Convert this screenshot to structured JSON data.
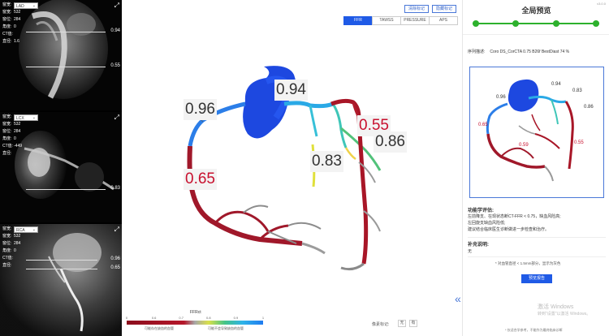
{
  "ct_panels": [
    {
      "vessel": "LAD",
      "fields": [
        {
          "k": "窗宽:",
          "v": "532"
        },
        {
          "k": "窗位:",
          "v": "284"
        },
        {
          "k": "角度:",
          "v": "0"
        },
        {
          "k": "CT值:",
          "v": ""
        },
        {
          "k": "直径:",
          "v": "1.6"
        }
      ],
      "marks": [
        "0.94",
        "0.55"
      ]
    },
    {
      "vessel": "LCX",
      "fields": [
        {
          "k": "窗宽:",
          "v": "532"
        },
        {
          "k": "窗位:",
          "v": "284"
        },
        {
          "k": "角度:",
          "v": "0"
        },
        {
          "k": "CT值:",
          "v": "-449"
        },
        {
          "k": "直径:",
          "v": ""
        }
      ],
      "marks": [
        "0.83"
      ]
    },
    {
      "vessel": "RCA",
      "fields": [
        {
          "k": "窗宽:",
          "v": "532"
        },
        {
          "k": "窗位:",
          "v": "284"
        },
        {
          "k": "角度:",
          "v": "0"
        },
        {
          "k": "CT值:",
          "v": ""
        },
        {
          "k": "直径:",
          "v": ""
        }
      ],
      "marks": [
        "0.96",
        "0.65"
      ]
    }
  ],
  "toolbar": {
    "clear_marks": "清除标记",
    "hide_marks": "隐藏标记"
  },
  "tabs": [
    "FFR",
    "TAWSS",
    "PRESSURE",
    "APS"
  ],
  "active_tab": "FFR",
  "ffr_labels": {
    "l096": "0.96",
    "l094": "0.94",
    "l055": "0.55",
    "l086": "0.86",
    "l083": "0.83",
    "l065": "0.65"
  },
  "legend": {
    "title": "FFRct",
    "ticks": [
      "0",
      "0.6",
      "0.7",
      "0.8",
      "0.9",
      "1"
    ],
    "cap_left": "可能存在缺血的血管",
    "cap_right": "可能不会导致缺血的血管"
  },
  "norm": {
    "label": "像素标记:",
    "opt1": "无",
    "opt2": "有"
  },
  "right": {
    "version": "v3.0.0",
    "title": "全局预览",
    "seq_label": "序列描述:",
    "seq_value": "Coro DS_CorCTA 0.75 B26f BestDiast 74 %",
    "thumb_labels": {
      "t096": "0.96",
      "t094": "0.94",
      "t083": "0.83",
      "t086": "0.86",
      "t065": "0.65",
      "t059": "0.59",
      "t055": "0.55"
    },
    "func_title": "功能学评估:",
    "func_lines": [
      "左前降支、在现状态断CT-FFR < 0.75，缺血风险高;",
      "左回旋支缺血风险低;",
      "建议结合临床医生诊断做进一步检查和治疗。"
    ],
    "extra_title": "补充说明:",
    "extra_value": "无",
    "note": "* 对血管直径 < 1.5mm部分，显示为灰色",
    "preview_btn": "预览报告",
    "watermark_1": "激活 Windows",
    "watermark_2": "转到\"设置\"以激活 Windows。",
    "footnote": "* 仅适合学参考，不能作为最终临床诊断"
  },
  "colors": {
    "accent": "#1f5ae6",
    "step_green": "#2db12d",
    "ffr_red": "#c8102e"
  }
}
